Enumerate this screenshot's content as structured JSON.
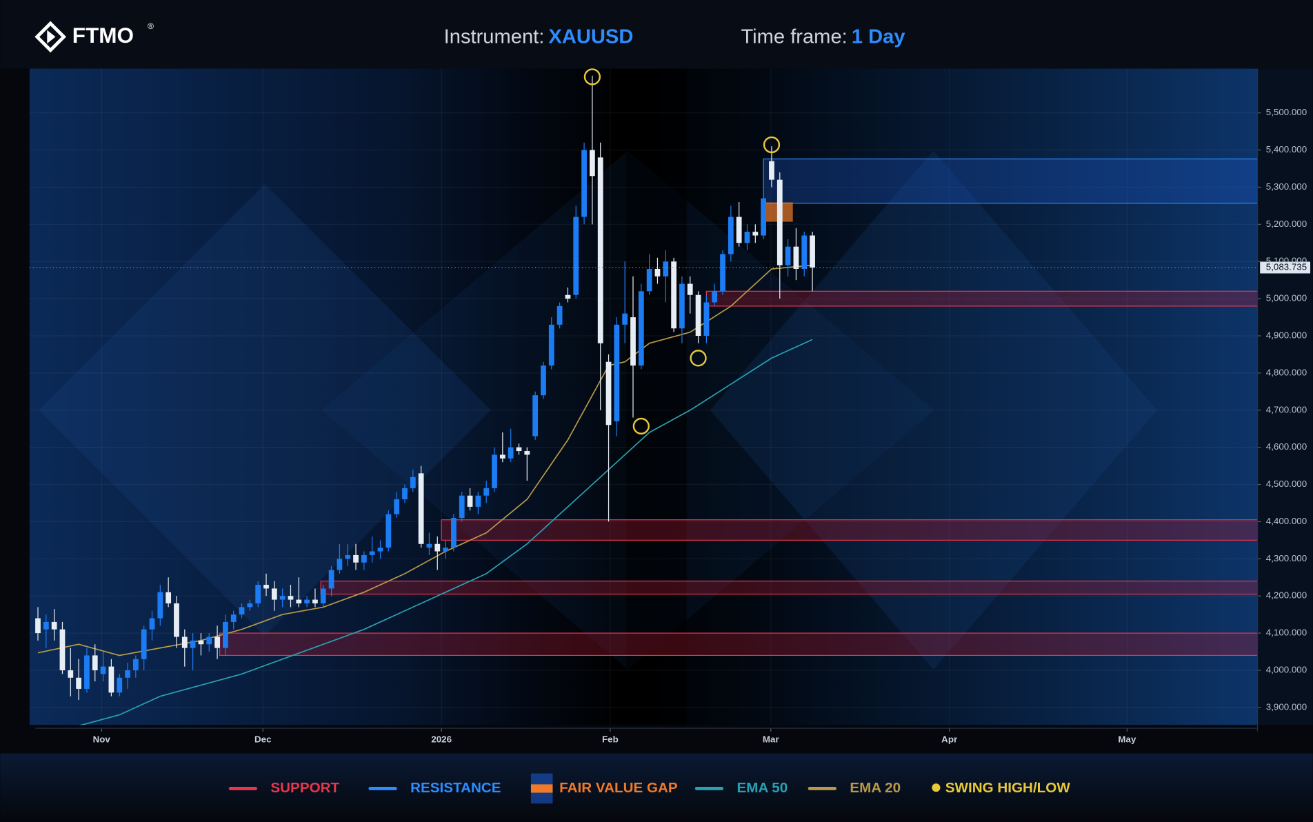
{
  "header": {
    "brand": "FTMO",
    "registered": "®",
    "instrument_label": "Instrument:",
    "instrument": "XAUUSD",
    "timeframe_label": "Time frame:",
    "timeframe": "1 Day"
  },
  "chart_data": {
    "type": "candlestick",
    "up_color": "#1c7cf4",
    "down_color": "#e6edf5",
    "grid": true,
    "ohlc": [
      [
        4140,
        4170,
        4080,
        4100
      ],
      [
        4110,
        4150,
        4060,
        4130
      ],
      [
        4130,
        4165,
        4080,
        4110
      ],
      [
        4110,
        4130,
        3990,
        4000
      ],
      [
        4000,
        4060,
        3930,
        3980
      ],
      [
        3980,
        4030,
        3920,
        3950
      ],
      [
        3950,
        4060,
        3940,
        4040
      ],
      [
        4040,
        4070,
        3970,
        4000
      ],
      [
        3990,
        4050,
        3970,
        4010
      ],
      [
        4010,
        4030,
        3930,
        3940
      ],
      [
        3940,
        3990,
        3930,
        3980
      ],
      [
        3980,
        4020,
        3950,
        4000
      ],
      [
        4000,
        4040,
        3980,
        4030
      ],
      [
        4030,
        4120,
        4000,
        4110
      ],
      [
        4110,
        4160,
        4080,
        4140
      ],
      [
        4140,
        4230,
        4120,
        4210
      ],
      [
        4210,
        4250,
        4170,
        4180
      ],
      [
        4180,
        4200,
        4060,
        4090
      ],
      [
        4090,
        4110,
        4010,
        4060
      ],
      [
        4060,
        4100,
        4000,
        4080
      ],
      [
        4080,
        4100,
        4040,
        4070
      ],
      [
        4070,
        4100,
        4050,
        4090
      ],
      [
        4090,
        4120,
        4030,
        4060
      ],
      [
        4060,
        4150,
        4040,
        4130
      ],
      [
        4130,
        4160,
        4110,
        4150
      ],
      [
        4150,
        4180,
        4140,
        4170
      ],
      [
        4170,
        4190,
        4160,
        4180
      ],
      [
        4180,
        4240,
        4170,
        4230
      ],
      [
        4230,
        4260,
        4200,
        4220
      ],
      [
        4220,
        4240,
        4160,
        4190
      ],
      [
        4190,
        4220,
        4170,
        4200
      ],
      [
        4200,
        4230,
        4170,
        4190
      ],
      [
        4190,
        4250,
        4170,
        4180
      ],
      [
        4180,
        4200,
        4170,
        4190
      ],
      [
        4190,
        4220,
        4170,
        4180
      ],
      [
        4180,
        4230,
        4170,
        4220
      ],
      [
        4220,
        4280,
        4200,
        4270
      ],
      [
        4270,
        4340,
        4260,
        4300
      ],
      [
        4300,
        4340,
        4280,
        4310
      ],
      [
        4310,
        4340,
        4270,
        4290
      ],
      [
        4290,
        4320,
        4270,
        4310
      ],
      [
        4310,
        4360,
        4290,
        4320
      ],
      [
        4320,
        4350,
        4300,
        4330
      ],
      [
        4330,
        4430,
        4320,
        4420
      ],
      [
        4420,
        4480,
        4410,
        4460
      ],
      [
        4460,
        4500,
        4450,
        4490
      ],
      [
        4490,
        4540,
        4480,
        4520
      ],
      [
        4530,
        4550,
        4330,
        4340
      ],
      [
        4330,
        4370,
        4310,
        4340
      ],
      [
        4340,
        4360,
        4270,
        4320
      ],
      [
        4320,
        4350,
        4300,
        4330
      ],
      [
        4330,
        4420,
        4320,
        4410
      ],
      [
        4410,
        4480,
        4400,
        4470
      ],
      [
        4470,
        4490,
        4430,
        4440
      ],
      [
        4440,
        4480,
        4420,
        4470
      ],
      [
        4470,
        4510,
        4450,
        4490
      ],
      [
        4490,
        4600,
        4480,
        4580
      ],
      [
        4580,
        4640,
        4560,
        4570
      ],
      [
        4570,
        4650,
        4560,
        4600
      ],
      [
        4600,
        4610,
        4580,
        4590
      ],
      [
        4590,
        4600,
        4510,
        4580
      ],
      [
        4630,
        4750,
        4620,
        4740
      ],
      [
        4740,
        4830,
        4730,
        4820
      ],
      [
        4820,
        4950,
        4810,
        4930
      ],
      [
        4930,
        4990,
        4920,
        4980
      ],
      [
        5010,
        5030,
        4990,
        5000
      ],
      [
        5010,
        5250,
        5000,
        5220
      ],
      [
        5220,
        5420,
        5200,
        5400
      ],
      [
        5400,
        5600,
        5200,
        5330
      ],
      [
        5380,
        5420,
        4700,
        4880
      ],
      [
        4830,
        4850,
        4400,
        4660
      ],
      [
        4670,
        4950,
        4630,
        4930
      ],
      [
        4930,
        5100,
        4880,
        4960
      ],
      [
        4950,
        5060,
        4680,
        4820
      ],
      [
        4820,
        5040,
        4810,
        5020
      ],
      [
        5020,
        5120,
        5010,
        5080
      ],
      [
        5080,
        5110,
        5040,
        5060
      ],
      [
        5060,
        5130,
        4990,
        5100
      ],
      [
        5100,
        5110,
        4910,
        4920
      ],
      [
        4920,
        5060,
        4880,
        5040
      ],
      [
        5040,
        5060,
        4960,
        5010
      ],
      [
        5010,
        5020,
        4880,
        4900
      ],
      [
        4900,
        5010,
        4880,
        4990
      ],
      [
        4990,
        5040,
        4980,
        5020
      ],
      [
        5020,
        5130,
        5010,
        5120
      ],
      [
        5120,
        5250,
        5100,
        5220
      ],
      [
        5220,
        5260,
        5140,
        5150
      ],
      [
        5150,
        5200,
        5130,
        5180
      ],
      [
        5180,
        5200,
        5150,
        5170
      ],
      [
        5170,
        5300,
        5160,
        5270
      ],
      [
        5370,
        5410,
        5300,
        5320
      ],
      [
        5320,
        5340,
        5000,
        5090
      ],
      [
        5090,
        5160,
        5060,
        5140
      ],
      [
        5140,
        5190,
        5050,
        5080
      ],
      [
        5080,
        5180,
        5060,
        5170
      ],
      [
        5170,
        5180,
        5020,
        5083.735
      ]
    ],
    "xlim": [
      -1.03,
      149.6
    ],
    "xticks": [
      {
        "value": 7.8,
        "label": "Nov"
      },
      {
        "value": 27.6,
        "label": "Dec"
      },
      {
        "value": 49.5,
        "label": "2026"
      },
      {
        "value": 70.2,
        "label": "Feb"
      },
      {
        "value": 89.9,
        "label": "Mar"
      },
      {
        "value": 111.8,
        "label": "Apr"
      },
      {
        "value": 133.6,
        "label": "May"
      }
    ],
    "ylim": [
      3853,
      5619
    ],
    "yticks": [
      {
        "value": 3900,
        "label": "3,900.000"
      },
      {
        "value": 4000,
        "label": "4,000.000"
      },
      {
        "value": 4100,
        "label": "4,100.000"
      },
      {
        "value": 4200,
        "label": "4,200.000"
      },
      {
        "value": 4300,
        "label": "4,300.000"
      },
      {
        "value": 4400,
        "label": "4,400.000"
      },
      {
        "value": 4500,
        "label": "4,500.000"
      },
      {
        "value": 4600,
        "label": "4,600.000"
      },
      {
        "value": 4700,
        "label": "4,700.000"
      },
      {
        "value": 4800,
        "label": "4,800.000"
      },
      {
        "value": 4900,
        "label": "4,900.000"
      },
      {
        "value": 5000,
        "label": "5,000.000"
      },
      {
        "value": 5100,
        "label": "5,100.000"
      },
      {
        "value": 5200,
        "label": "5,200.000"
      },
      {
        "value": 5300,
        "label": "5,300.000"
      },
      {
        "value": 5400,
        "label": "5,400.000"
      },
      {
        "value": 5500,
        "label": "5,500.000"
      }
    ],
    "last_price": {
      "value": 5083.735,
      "label": "5,083.735"
    },
    "support": {
      "name": "SUPPORT",
      "color": "#e8364b",
      "zones": [
        {
          "start": 82,
          "bottom": 4980,
          "top": 5020
        },
        {
          "start": 49.5,
          "bottom": 4350,
          "top": 4405
        },
        {
          "start": 34.7,
          "bottom": 4205,
          "top": 4240
        },
        {
          "start": 22.3,
          "bottom": 4040,
          "top": 4100
        }
      ]
    },
    "resistance": {
      "name": "RESISTANCE",
      "color": "#2f8cff",
      "zones": [
        {
          "start": 89,
          "bottom": 5257,
          "top": 5376
        }
      ]
    },
    "fair_value_gap": {
      "name": "FAIR VALUE GAP",
      "color": "#f07a2a",
      "zones": [
        {
          "start": 89.2,
          "end": 92.6,
          "bottom": 5207,
          "top": 5259
        }
      ]
    },
    "series": [
      {
        "name": "EMA 50",
        "color": "#2aa1b3",
        "x": [
          4,
          10,
          15,
          20,
          25,
          30,
          35,
          40,
          45,
          50,
          55,
          60,
          65,
          70,
          75,
          80,
          85,
          90,
          95
        ],
        "values": [
          3845,
          3880,
          3930,
          3960,
          3990,
          4030,
          4070,
          4110,
          4160,
          4210,
          4260,
          4340,
          4440,
          4540,
          4640,
          4700,
          4770,
          4840,
          4890
        ]
      },
      {
        "name": "EMA 20",
        "color": "#b8994a",
        "x": [
          0,
          5,
          10,
          15,
          20,
          25,
          30,
          35,
          40,
          45,
          50,
          55,
          60,
          65,
          70,
          72,
          75,
          80,
          85,
          90,
          95
        ],
        "values": [
          4047,
          4070,
          4040,
          4060,
          4080,
          4110,
          4150,
          4170,
          4210,
          4260,
          4320,
          4370,
          4460,
          4620,
          4820,
          4830,
          4880,
          4910,
          4980,
          5080,
          5090
        ]
      }
    ],
    "swing": {
      "name": "SWING HIGH/LOW",
      "color": "#e8c93a",
      "x": [
        68,
        90,
        74,
        81
      ],
      "values": [
        5597,
        5414,
        4657,
        4840
      ]
    }
  }
}
